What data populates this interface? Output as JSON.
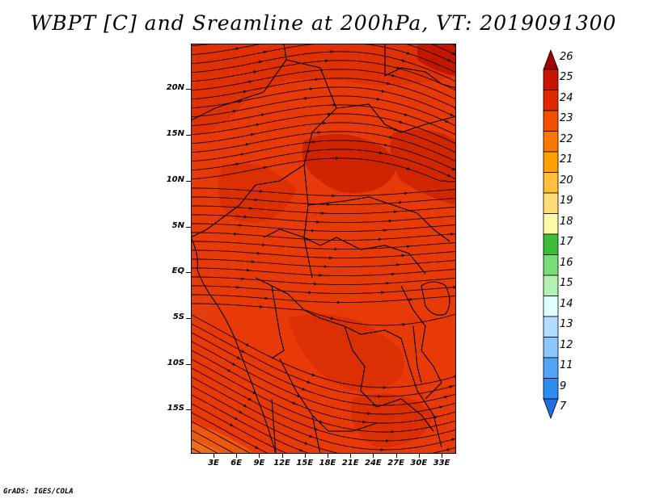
{
  "figure": {
    "title": "WBPT [C] and Sreamline at 200hPa, VT: 2019091300",
    "credit": "GrADS: IGES/COLA"
  },
  "map": {
    "field": "wet-bulb potential temperature with streamlines",
    "level": "200hPa",
    "valid_time": "2019091300",
    "lat_ticks": [
      "20N",
      "15N",
      "10N",
      "5N",
      "EQ",
      "5S",
      "10S",
      "15S"
    ],
    "lon_ticks": [
      "3E",
      "6E",
      "9E",
      "12E",
      "15E",
      "18E",
      "21E",
      "24E",
      "27E",
      "30E",
      "33E"
    ],
    "dominant_band": "23-24 C across the domain",
    "warmer_patches": "24-25 C near 16N 20E and northeast corner",
    "cooler_corner": "22-23 C in southwest corner"
  },
  "colorbar": {
    "labels": [
      "26",
      "25",
      "24",
      "23",
      "22",
      "21",
      "20",
      "19",
      "18",
      "17",
      "16",
      "15",
      "14",
      "13",
      "12",
      "11",
      "9",
      "7"
    ],
    "colors": [
      "#a50000",
      "#c81400",
      "#e12800",
      "#f05000",
      "#fa7800",
      "#ffa000",
      "#ffbe3c",
      "#ffdc78",
      "#fffaaa",
      "#3cbe3c",
      "#78dc78",
      "#b4f0b4",
      "#e1ffff",
      "#b4dcff",
      "#8cc8ff",
      "#50a5f5",
      "#2d8cf0",
      "#1e6ee1"
    ],
    "extend": "both"
  }
}
